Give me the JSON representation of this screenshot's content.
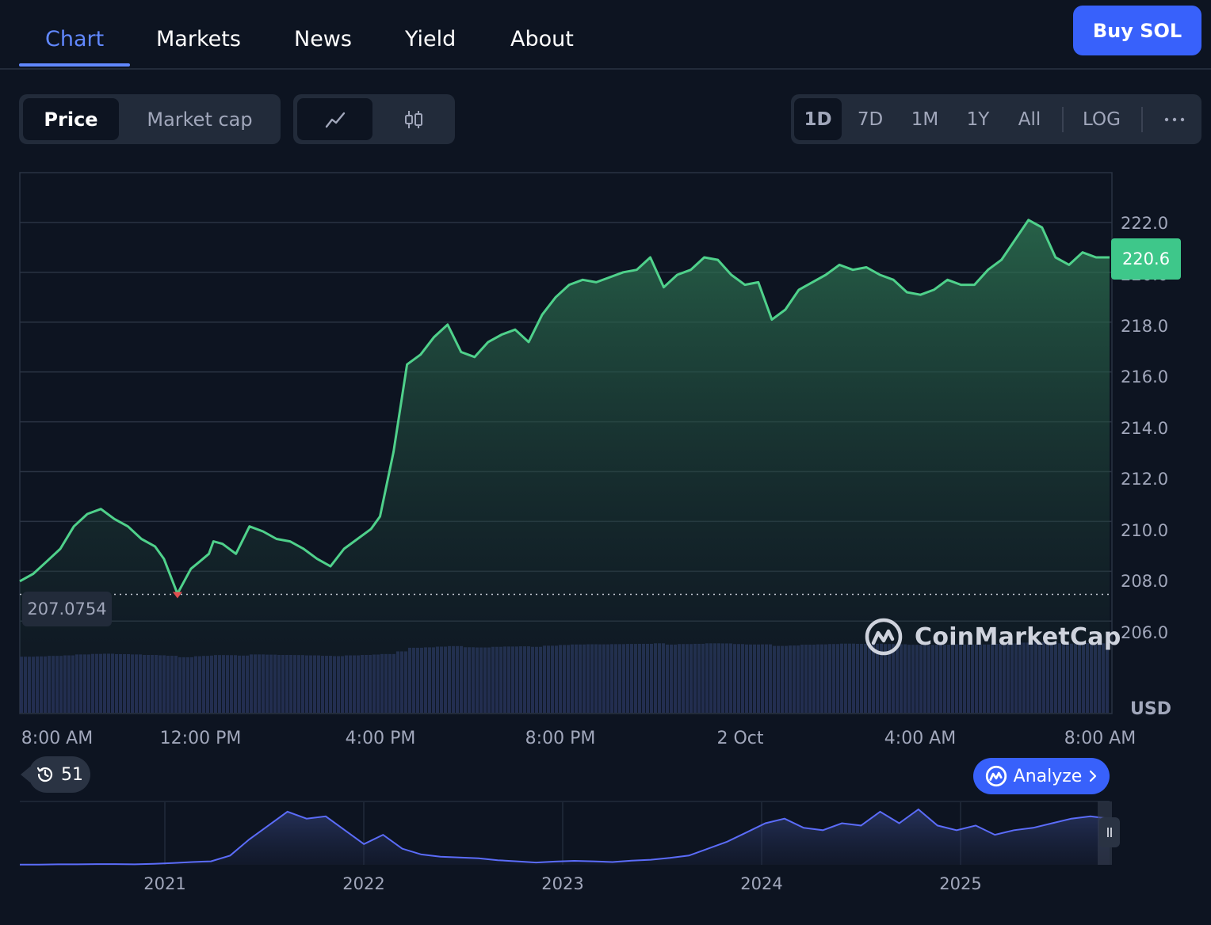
{
  "nav": {
    "tabs": [
      {
        "label": "Chart",
        "active": true
      },
      {
        "label": "Markets"
      },
      {
        "label": "News"
      },
      {
        "label": "Yield"
      },
      {
        "label": "About"
      }
    ],
    "buy_label": "Buy SOL"
  },
  "toolbar": {
    "metric": [
      "Price",
      "Market cap"
    ],
    "metric_active": "Price",
    "chart_style": [
      "line-chart-icon",
      "candlestick-icon"
    ],
    "ranges": [
      "1D",
      "7D",
      "1M",
      "1Y",
      "All"
    ],
    "range_active": "1D",
    "log_label": "LOG",
    "more_icon": "more-dots-icon"
  },
  "chart_data": {
    "type": "area",
    "y_ticks": [
      "222.0",
      "220.0",
      "218.0",
      "216.0",
      "214.0",
      "212.0",
      "210.0",
      "208.0",
      "206.0"
    ],
    "ylim": [
      205.5,
      224.0
    ],
    "current_price": "220.6",
    "low_label": "207.0754",
    "unit": "USD",
    "x_ticks": [
      "8:00 AM",
      "12:00 PM",
      "4:00 PM",
      "8:00 PM",
      "2 Oct",
      "4:00 AM",
      "8:00 AM"
    ],
    "x": [
      0,
      0.3,
      0.6,
      0.9,
      1.2,
      1.5,
      1.8,
      2.1,
      2.4,
      2.7,
      3.0,
      3.2,
      3.5,
      3.8,
      4.0,
      4.2,
      4.3,
      4.5,
      4.8,
      5.1,
      5.4,
      5.7,
      6.0,
      6.3,
      6.6,
      6.9,
      7.2,
      7.5,
      7.8,
      8.0,
      8.3,
      8.6,
      8.9,
      9.2,
      9.5,
      9.8,
      10.1,
      10.4,
      10.7,
      11.0,
      11.3,
      11.6,
      11.9,
      12.2,
      12.5,
      12.8,
      13.1,
      13.4,
      13.7,
      14.0,
      14.3,
      14.6,
      14.9,
      15.2,
      15.5,
      15.8,
      16.1,
      16.4,
      16.7,
      17.0,
      17.3,
      17.6,
      17.9,
      18.2,
      18.5,
      18.8,
      19.1,
      19.4,
      19.7,
      20.0,
      20.3,
      20.6,
      20.9,
      21.2,
      21.5,
      21.8,
      22.1,
      22.4,
      22.7,
      23.0,
      23.3,
      23.6,
      23.9,
      24.2
    ],
    "values": [
      207.6,
      207.9,
      208.4,
      208.9,
      209.8,
      210.3,
      210.5,
      210.1,
      209.8,
      209.3,
      209.0,
      208.5,
      207.1,
      208.1,
      208.4,
      208.7,
      209.2,
      209.1,
      208.7,
      209.8,
      209.6,
      209.3,
      209.2,
      208.9,
      208.5,
      208.2,
      208.9,
      209.3,
      209.7,
      210.2,
      212.8,
      216.3,
      216.7,
      217.4,
      217.9,
      216.8,
      216.6,
      217.2,
      217.5,
      217.7,
      217.2,
      218.3,
      219.0,
      219.5,
      219.7,
      219.6,
      219.8,
      220.0,
      220.1,
      220.6,
      219.4,
      219.9,
      220.1,
      220.6,
      220.5,
      219.9,
      219.5,
      219.6,
      218.1,
      218.5,
      219.3,
      219.6,
      219.9,
      220.3,
      220.1,
      220.2,
      219.9,
      219.7,
      219.2,
      219.1,
      219.3,
      219.7,
      219.5,
      219.5,
      220.1,
      220.5,
      221.3,
      222.1,
      221.8,
      220.6,
      220.3,
      220.8,
      220.6,
      220.6
    ],
    "history": {
      "x_ticks": [
        "2021",
        "2022",
        "2023",
        "2024",
        "2025"
      ],
      "x": [
        0,
        0.1,
        0.2,
        0.3,
        0.4,
        0.5,
        0.6,
        0.7,
        0.8,
        0.9,
        1.0,
        1.1,
        1.2,
        1.3,
        1.4,
        1.5,
        1.6,
        1.7,
        1.8,
        1.9,
        2.0,
        2.1,
        2.2,
        2.3,
        2.4,
        2.5,
        2.6,
        2.7,
        2.8,
        2.9,
        3.0,
        3.1,
        3.2,
        3.3,
        3.4,
        3.5,
        3.6,
        3.7,
        3.8,
        3.9,
        4.0,
        4.1,
        4.2,
        4.3,
        4.4,
        4.5,
        4.6,
        4.7,
        4.8,
        4.9,
        5.0,
        5.1,
        5.2,
        5.3,
        5.4,
        5.5,
        5.6,
        5.7
      ],
      "values": [
        1,
        1,
        2,
        2,
        3,
        3,
        2,
        4,
        8,
        12,
        15,
        40,
        110,
        170,
        230,
        200,
        210,
        150,
        90,
        130,
        70,
        45,
        35,
        32,
        28,
        20,
        15,
        10,
        14,
        17,
        15,
        12,
        18,
        22,
        30,
        40,
        70,
        100,
        140,
        180,
        200,
        160,
        150,
        180,
        170,
        230,
        180,
        240,
        170,
        150,
        170,
        130,
        150,
        160,
        180,
        200,
        210,
        200
      ],
      "unit": "USD"
    }
  },
  "watermark": "CoinMarketCap",
  "history_count": "51",
  "analyze_label": "Analyze"
}
